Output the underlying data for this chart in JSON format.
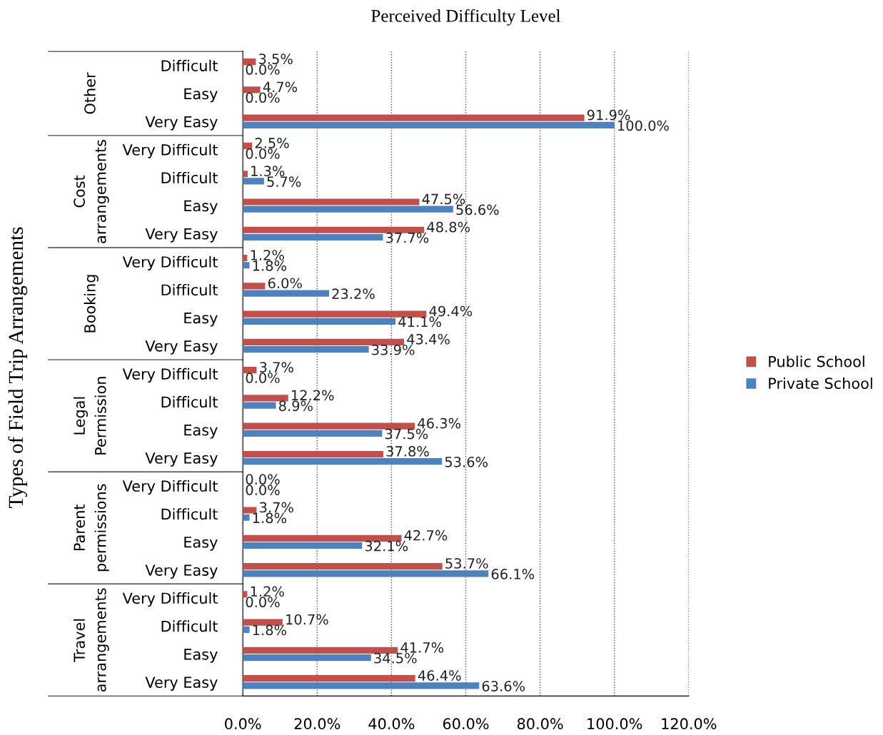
{
  "chart_data": {
    "type": "bar",
    "orientation": "horizontal",
    "title": "Perceived Difficulty Level",
    "ylabel": "Types of Field Trip Arrangements",
    "categories": [
      "Difficult",
      "Easy",
      "Very Easy",
      "Very Difficult",
      "Difficult",
      "Easy",
      "Very Easy",
      "Very Difficult",
      "Difficult",
      "Easy",
      "Very Easy",
      "Very Difficult",
      "Difficult",
      "Easy",
      "Very Easy",
      "Very Difficult",
      "Difficult",
      "Easy",
      "Very Easy",
      "Very Difficult",
      "Difficult",
      "Easy",
      "Very Easy"
    ],
    "annotations": [
      "Other",
      "Cost\narrangements",
      "Booking",
      "Legal\nPermission",
      "Parent\npermissions",
      "Travel\narrangements"
    ],
    "series": [
      {
        "name": "Public School",
        "color": "#c0504d",
        "values": [
          3.5,
          4.7,
          91.9,
          2.5,
          1.3,
          47.5,
          48.8,
          1.2,
          6.0,
          49.4,
          43.4,
          3.7,
          12.2,
          46.3,
          37.8,
          0.0,
          3.7,
          42.7,
          53.7,
          1.2,
          10.7,
          41.7,
          46.4
        ],
        "value_labels": [
          "3.5%",
          "4.7%",
          "91.9%",
          "2.5%",
          "1.3%",
          "47.5%",
          "48.8%",
          "1.2%",
          "6.0%",
          "49.4%",
          "43.4%",
          "3.7%",
          "12.2%",
          "46.3%",
          "37.8%",
          "0.0%",
          "3.7%",
          "42.7%",
          "53.7%",
          "1.2%",
          "10.7%",
          "41.7%",
          "46.4%"
        ]
      },
      {
        "name": "Private School",
        "color": "#4f81bd",
        "values": [
          0.0,
          0.0,
          100.0,
          0.0,
          5.7,
          56.6,
          37.7,
          1.8,
          23.2,
          41.1,
          33.9,
          0.0,
          8.9,
          37.5,
          53.6,
          0.0,
          1.8,
          32.1,
          66.1,
          0.0,
          1.8,
          34.5,
          63.6
        ],
        "value_labels": [
          "0.0%",
          "0.0%",
          "100.0%",
          "0.0%",
          "5.7%",
          "56.6%",
          "37.7%",
          "1.8%",
          "23.2%",
          "41.1%",
          "33.9%",
          "0.0%",
          "8.9%",
          "37.5%",
          "53.6%",
          "0.0%",
          "1.8%",
          "32.1%",
          "66.1%",
          "0.0%",
          "1.8%",
          "34.5%",
          "63.6%"
        ]
      }
    ],
    "xlim": [
      0,
      120
    ],
    "xticks": [
      {
        "value": 0,
        "label": "0.0%"
      },
      {
        "value": 20,
        "label": "20.0%"
      },
      {
        "value": 40,
        "label": "40.0%"
      },
      {
        "value": 60,
        "label": "60.0%"
      },
      {
        "value": 80,
        "label": "80.0%"
      },
      {
        "value": 100,
        "label": "100.0%"
      },
      {
        "value": 120,
        "label": "120.0%"
      }
    ],
    "grid": "x",
    "legend": "right"
  }
}
